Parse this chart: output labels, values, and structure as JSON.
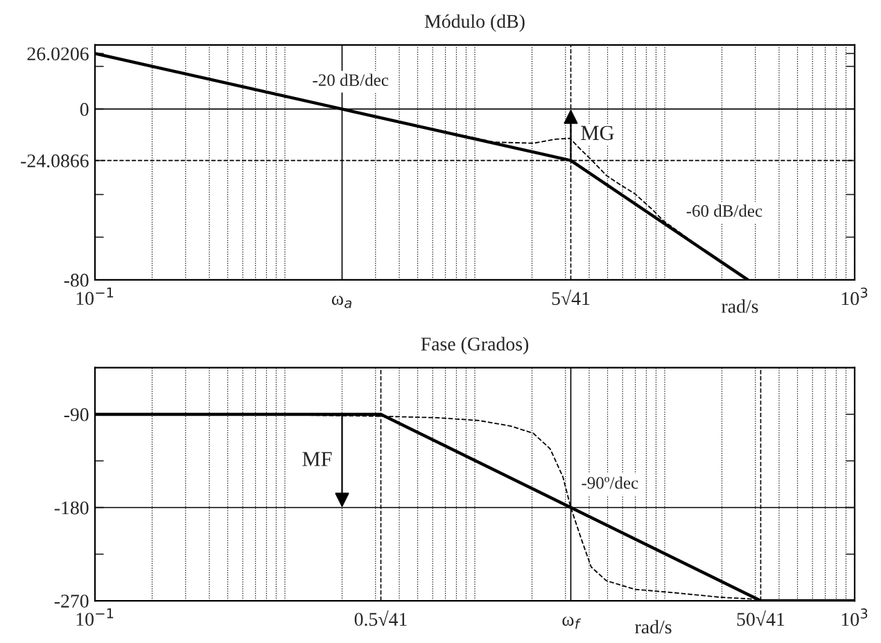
{
  "chart_data": [
    {
      "type": "line",
      "title": "Módulo (dB)",
      "xlabel": "rad/s",
      "log": "x",
      "grid": "x",
      "xlim": [
        0.1,
        1000
      ],
      "xticks": [
        {
          "value": 0.1,
          "label": "10$^{−1}$"
        },
        {
          "value": 2,
          "label": "ω$_{a}$"
        },
        {
          "value": 32.02,
          "label": "5√41"
        },
        {
          "value": 1000,
          "label": "10$^{3}$"
        }
      ],
      "ylim": [
        -80,
        30
      ],
      "yticks": [
        26.0206,
        {
          "value": 20,
          "label": null
        },
        0,
        -24.0866,
        {
          "value": -40,
          "label": null
        },
        {
          "value": -60,
          "label": null
        },
        -80
      ],
      "series": [
        {
          "color": "#000000",
          "line_style": "solid",
          "x": [
            0.1,
            2,
            32.02,
            274
          ],
          "values": [
            26.0206,
            0,
            -24.0866,
            -80
          ]
        },
        {
          "color": "#000000",
          "line_style": "dashed",
          "x": [
            6.3,
            9.85,
            12.6,
            20.3,
            26.7,
            31.6,
            36.3,
            41,
            49.3,
            58.9,
            69.7,
            85.9,
            98.4,
            150
          ],
          "values": [
            -10.1,
            -13.4,
            -15.5,
            -16,
            -14.1,
            -13.7,
            -19.1,
            -23.7,
            -31.1,
            -35.7,
            -39.7,
            -47,
            -52.3,
            -64
          ]
        }
      ],
      "ref_lines": [
        {
          "axis": "x",
          "value": 2,
          "color": "#000000",
          "line_style": "solid"
        },
        {
          "axis": "x",
          "value": 32.02,
          "color": "#000000",
          "line_style": "dashed"
        },
        {
          "axis": "y",
          "value": 0,
          "color": "#000000",
          "line_style": "solid"
        },
        {
          "axis": "y",
          "value": -24.0866,
          "color": "#000000",
          "line_style": "dashed"
        }
      ],
      "annotations": [
        "-20 dB/dec",
        {
          "text": "MG",
          "x": 32.02,
          "y": 0
        },
        "-60 dB/dec"
      ]
    },
    {
      "type": "line",
      "title": "Fase (Grados)",
      "xlabel": "rad/s",
      "log": "x",
      "grid": "x",
      "xlim": [
        0.1,
        1000
      ],
      "xticks": [
        {
          "value": 0.1,
          "label": "10$^{−1}$"
        },
        {
          "value": 3.2016,
          "label": "0.5√41"
        },
        {
          "value": 32.02,
          "label": "ω$_{f}$"
        },
        {
          "value": 320.16,
          "label": "50√41"
        },
        {
          "value": 1000,
          "label": "10$^{3}$"
        }
      ],
      "ylim": [
        -270,
        -45
      ],
      "yticks": [
        -90,
        {
          "value": -135,
          "label": null
        },
        -180,
        {
          "value": -225,
          "label": null
        },
        -270
      ],
      "series": [
        {
          "color": "#000000",
          "line_style": "solid",
          "x": [
            0.1,
            3.2016,
            320.16,
            1000
          ],
          "values": [
            -90,
            -90,
            -270,
            -270
          ]
        },
        {
          "color": "#000000",
          "line_style": "dashed",
          "x": [
            0.65,
            3.2,
            6.3,
            10.5,
            15.4,
            20.3,
            24.9,
            29.1,
            32.02,
            36.3,
            41,
            49.3,
            69.7,
            108.6,
            196,
            305
          ],
          "values": [
            -90,
            -91.9,
            -93.3,
            -96,
            -101.3,
            -108.3,
            -123.2,
            -150.4,
            -180,
            -210,
            -237.4,
            -250.7,
            -259,
            -262,
            -266.6,
            -268.6
          ]
        }
      ],
      "ref_lines": [
        {
          "axis": "x",
          "value": 3.2016,
          "color": "#000000",
          "line_style": "dashed"
        },
        {
          "axis": "x",
          "value": 32.02,
          "color": "#000000",
          "line_style": "solid"
        },
        {
          "axis": "x",
          "value": 320.16,
          "color": "#000000",
          "line_style": "dashed"
        },
        {
          "axis": "y",
          "value": -180,
          "color": "#000000",
          "line_style": "solid"
        }
      ],
      "annotations": [
        {
          "text": "MF",
          "x": 2,
          "y": -180
        },
        "-90º/dec"
      ]
    }
  ]
}
